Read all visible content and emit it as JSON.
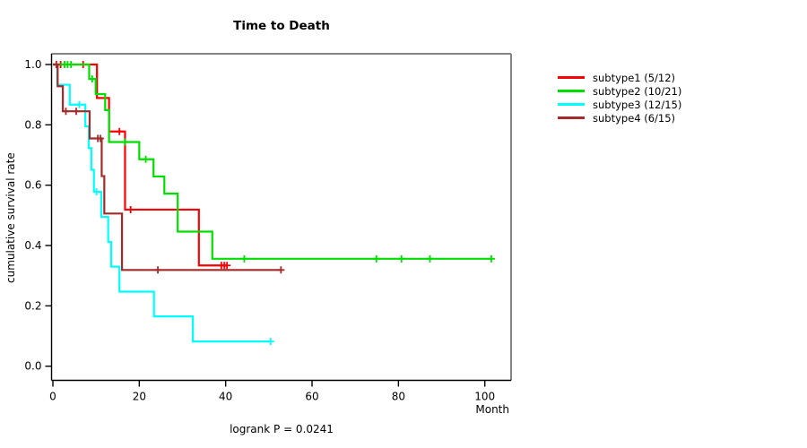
{
  "chart_data": {
    "type": "line",
    "subtype": "kaplan-meier-step",
    "title": "Time to Death",
    "xlabel": "Month",
    "ylabel": "cumulative survival rate",
    "footnote": "logrank P = 0.0241",
    "x_ticks": [
      0,
      20,
      40,
      60,
      80,
      100
    ],
    "y_ticks": [
      0.0,
      0.2,
      0.4,
      0.6,
      0.8,
      1.0
    ],
    "xlim": [
      0,
      106
    ],
    "ylim": [
      0,
      1
    ],
    "grid": false,
    "legend_position": "right",
    "box_color": "#858585",
    "axis_color": "#000000",
    "series": [
      {
        "name": "subtype1 (5/12)",
        "color": "#FF0000",
        "steps": [
          [
            0,
            1.0
          ],
          [
            10.2,
            0.889
          ],
          [
            13.0,
            0.778
          ],
          [
            16.7,
            0.519
          ],
          [
            33.8,
            0.334
          ]
        ],
        "end": 40.3,
        "censors": [
          [
            1.8,
            1.0
          ],
          [
            7.0,
            1.0
          ],
          [
            15.4,
            0.778
          ],
          [
            18.0,
            0.519
          ],
          [
            39.0,
            0.334
          ],
          [
            39.7,
            0.334
          ],
          [
            40.3,
            0.334
          ]
        ]
      },
      {
        "name": "subtype2 (10/21)",
        "color": "#00DE00",
        "steps": [
          [
            0,
            1.0
          ],
          [
            8.4,
            0.952
          ],
          [
            9.9,
            0.902
          ],
          [
            12.1,
            0.849
          ],
          [
            13.0,
            0.743
          ],
          [
            20.0,
            0.686
          ],
          [
            23.3,
            0.629
          ],
          [
            25.8,
            0.572
          ],
          [
            28.9,
            0.446
          ],
          [
            36.9,
            0.356
          ]
        ],
        "end": 101.5,
        "censors": [
          [
            2.7,
            1.0
          ],
          [
            3.4,
            1.0
          ],
          [
            4.2,
            1.0
          ],
          [
            9.1,
            0.952
          ],
          [
            16.7,
            0.743
          ],
          [
            21.5,
            0.686
          ],
          [
            44.3,
            0.356
          ],
          [
            74.9,
            0.356
          ],
          [
            80.7,
            0.356
          ],
          [
            87.3,
            0.356
          ],
          [
            101.5,
            0.356
          ]
        ]
      },
      {
        "name": "subtype3 (12/15)",
        "color": "#00FFFF",
        "steps": [
          [
            0,
            1.0
          ],
          [
            1.0,
            0.933
          ],
          [
            3.9,
            0.867
          ],
          [
            7.5,
            0.795
          ],
          [
            8.3,
            0.723
          ],
          [
            8.9,
            0.651
          ],
          [
            9.5,
            0.578
          ],
          [
            11.2,
            0.495
          ],
          [
            12.8,
            0.412
          ],
          [
            13.5,
            0.33
          ],
          [
            15.4,
            0.247
          ],
          [
            23.4,
            0.165
          ],
          [
            32.4,
            0.082
          ]
        ],
        "end": 50.4,
        "censors": [
          [
            6.1,
            0.867
          ],
          [
            10.1,
            0.578
          ],
          [
            50.4,
            0.082
          ]
        ]
      },
      {
        "name": "subtype4 (6/15)",
        "color": "#A52A2A",
        "steps": [
          [
            0,
            1.0
          ],
          [
            1.1,
            0.928
          ],
          [
            2.3,
            0.845
          ],
          [
            8.5,
            0.755
          ],
          [
            11.3,
            0.63
          ],
          [
            11.9,
            0.506
          ],
          [
            16.0,
            0.319
          ]
        ],
        "end": 53.0,
        "censors": [
          [
            0.8,
            1.0
          ],
          [
            3.0,
            0.845
          ],
          [
            5.4,
            0.845
          ],
          [
            10.4,
            0.755
          ],
          [
            11.0,
            0.755
          ],
          [
            24.3,
            0.319
          ],
          [
            52.8,
            0.319
          ]
        ]
      }
    ]
  }
}
